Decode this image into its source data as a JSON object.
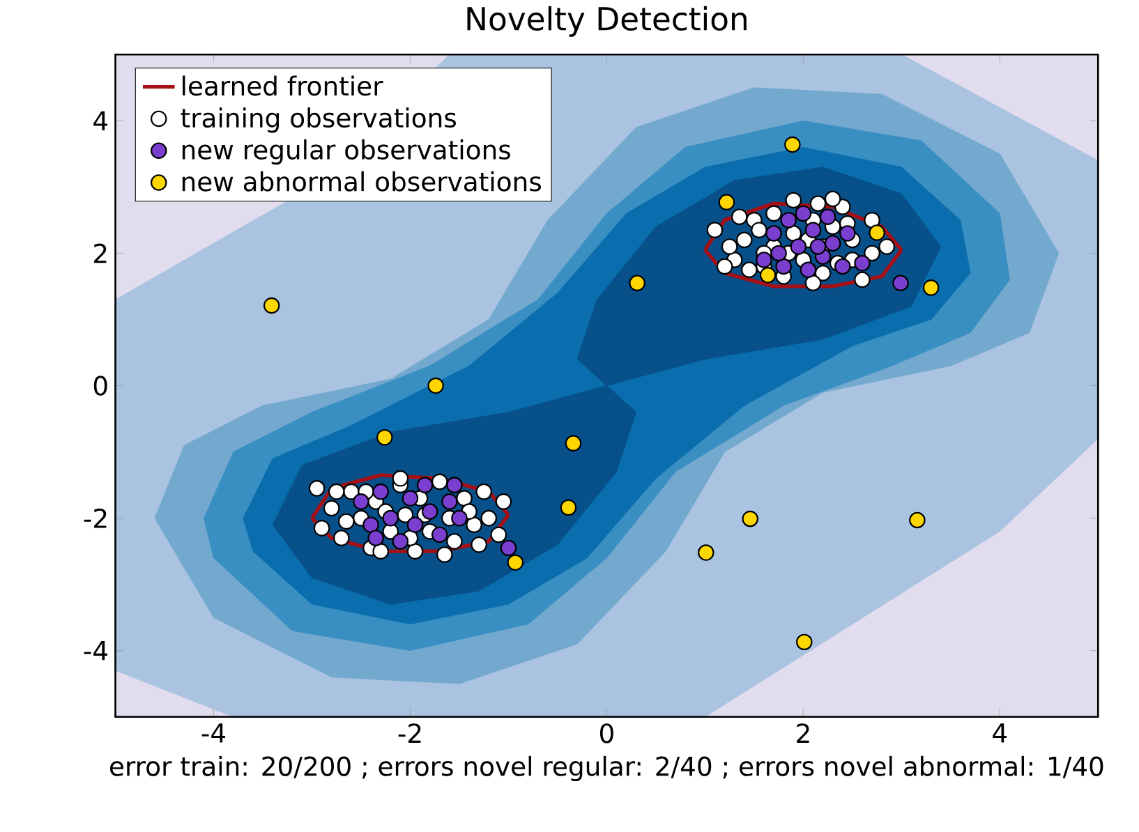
{
  "chart_data": {
    "type": "scatter",
    "title": "Novelty Detection",
    "xlabel": "error train: 20/200 ; errors novel regular: 2/40 ; errors novel abnormal: 1/40",
    "xlim": [
      -5,
      5
    ],
    "ylim": [
      -5,
      5
    ],
    "xticks": [
      -4,
      -2,
      0,
      2,
      4
    ],
    "yticks": [
      -4,
      -2,
      0,
      2,
      4
    ],
    "legend": "top left",
    "series": [
      {
        "type": "line",
        "name": "learned frontier",
        "marker": "none",
        "color": "#a50f15",
        "x": [
          1.0,
          1.2,
          1.7,
          2.3,
          2.8,
          3.0
        ],
        "values": [
          2.05,
          2.5,
          2.75,
          2.7,
          2.4,
          2.05
        ]
      },
      {
        "type": "line",
        "marker": "none",
        "color": "#a50f15",
        "x": [
          1.0,
          1.2,
          1.7,
          2.3,
          2.8,
          3.0
        ],
        "values": [
          2.05,
          1.7,
          1.5,
          1.5,
          1.65,
          2.05
        ]
      },
      {
        "type": "line",
        "marker": "none",
        "color": "#a50f15",
        "x": [
          -3.0,
          -2.8,
          -2.3,
          -1.7,
          -1.2,
          -1.0
        ],
        "values": [
          -2.0,
          -1.55,
          -1.35,
          -1.4,
          -1.6,
          -1.95
        ]
      },
      {
        "type": "line",
        "marker": "none",
        "color": "#a50f15",
        "x": [
          -3.0,
          -2.8,
          -2.3,
          -1.7,
          -1.2,
          -1.0
        ],
        "values": [
          -2.0,
          -2.3,
          -2.5,
          -2.5,
          -2.35,
          -1.95
        ]
      },
      {
        "name": "training observations",
        "marker": "circle",
        "color": "#ffffff",
        "x": [
          1.3,
          1.4,
          1.5,
          1.6,
          1.7,
          1.7,
          1.8,
          1.9,
          1.9,
          2.0,
          2.1,
          2.2,
          2.2,
          2.3,
          2.4,
          2.5,
          2.5,
          2.6,
          2.7,
          2.7,
          2.85,
          1.55,
          1.45,
          1.85,
          2.05,
          2.35,
          1.6,
          2.15,
          2.45,
          1.25,
          2.3,
          2.1,
          1.2,
          1.1,
          1.35,
          -2.9,
          -2.8,
          -2.7,
          -2.6,
          -2.5,
          -2.4,
          -2.35,
          -2.2,
          -2.1,
          -2.05,
          -1.95,
          -1.9,
          -1.8,
          -1.7,
          -1.6,
          -1.55,
          -1.45,
          -1.35,
          -1.25,
          -1.2,
          -2.65,
          -2.25,
          -1.85,
          -2.45,
          -1.4,
          -2.0,
          -2.3,
          -2.95,
          -1.1,
          -1.3,
          -2.75,
          -2.1,
          -1.05,
          -1.65
        ],
        "values": [
          1.9,
          2.2,
          2.5,
          1.8,
          2.1,
          2.6,
          1.65,
          2.3,
          2.8,
          1.9,
          2.5,
          2.1,
          1.7,
          2.4,
          2.7,
          1.9,
          2.2,
          1.6,
          2.0,
          2.5,
          2.1,
          2.35,
          1.75,
          2.0,
          2.2,
          1.85,
          2.0,
          2.75,
          2.45,
          2.1,
          2.82,
          1.55,
          1.8,
          2.35,
          2.55,
          -2.15,
          -1.85,
          -2.3,
          -1.6,
          -2.0,
          -2.45,
          -1.75,
          -2.2,
          -1.5,
          -1.95,
          -2.5,
          -1.7,
          -2.2,
          -1.45,
          -2.0,
          -2.35,
          -1.7,
          -2.1,
          -1.6,
          -2.0,
          -2.05,
          -1.9,
          -1.95,
          -1.6,
          -1.9,
          -2.3,
          -2.5,
          -1.55,
          -2.25,
          -2.4,
          -1.6,
          -1.4,
          -1.75,
          -2.55
        ]
      },
      {
        "name": "new regular observations",
        "marker": "circle",
        "color": "#7b3fd0",
        "x": [
          1.6,
          1.7,
          1.8,
          1.85,
          1.95,
          2.05,
          2.1,
          2.2,
          2.25,
          2.3,
          2.4,
          2.45,
          2.0,
          1.75,
          2.15,
          2.6,
          2.99,
          -2.5,
          -2.4,
          -2.3,
          -2.2,
          -2.1,
          -2.0,
          -1.95,
          -1.85,
          -1.8,
          -1.7,
          -1.6,
          -1.5,
          -2.35,
          -1.55,
          -1.0
        ],
        "values": [
          1.9,
          2.3,
          1.8,
          2.5,
          2.1,
          1.75,
          2.35,
          1.95,
          2.55,
          2.15,
          1.8,
          2.3,
          2.6,
          2.0,
          2.1,
          1.85,
          1.55,
          -1.75,
          -2.1,
          -1.6,
          -2.0,
          -2.35,
          -1.7,
          -2.1,
          -1.5,
          -1.9,
          -2.25,
          -1.75,
          -2.0,
          -2.3,
          -1.5,
          -2.45
        ]
      },
      {
        "name": "new abnormal observations",
        "marker": "circle",
        "color": "#ffd700",
        "x": [
          -3.41,
          -1.74,
          -2.26,
          -0.34,
          -0.39,
          -0.93,
          0.31,
          1.22,
          1.89,
          1.64,
          2.75,
          3.3,
          1.46,
          1.01,
          3.16,
          2.01
        ],
        "values": [
          1.21,
          0,
          -0.78,
          -0.87,
          -1.84,
          -2.67,
          1.55,
          2.77,
          3.64,
          1.67,
          2.31,
          1.48,
          -2.01,
          -2.52,
          -2.03,
          -3.87
        ]
      }
    ]
  }
}
